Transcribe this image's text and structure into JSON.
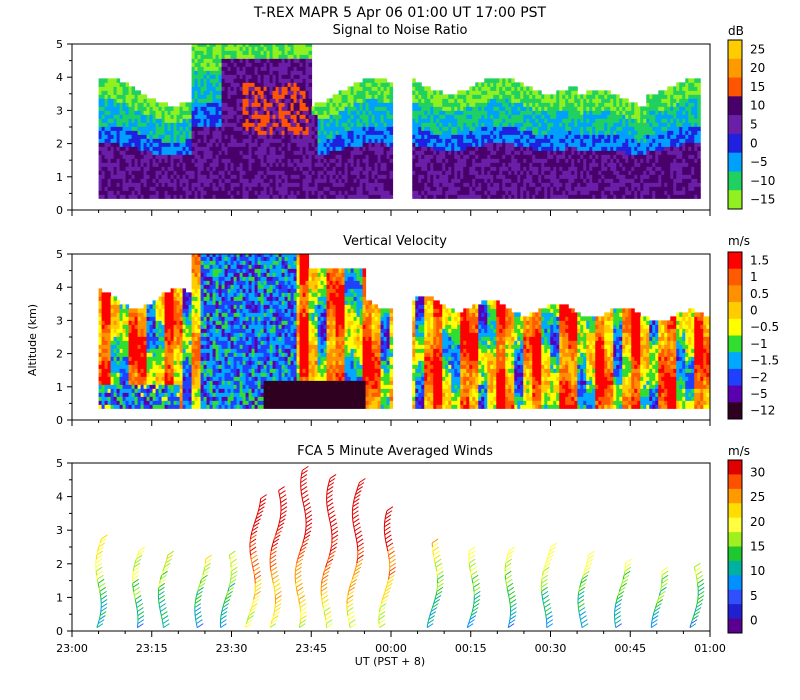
{
  "title": "T-REX   MAPR   5 Apr 06   01:00 UT   17:00   PST",
  "ylabel": "Altitude (km)",
  "xlabel": "UT  (PST + 8)",
  "x_ticks": [
    "23:00",
    "23:15",
    "23:30",
    "23:45",
    "00:00",
    "00:15",
    "00:30",
    "00:45",
    "01:00"
  ],
  "chart_data": [
    {
      "type": "heatmap",
      "title": "Signal to Noise Ratio",
      "ylabel": "Altitude (km)",
      "ylim": [
        0,
        5
      ],
      "y_ticks": [
        0,
        1,
        2,
        3,
        4,
        5
      ],
      "x_ticks": [
        "23:00",
        "23:15",
        "23:30",
        "23:45",
        "00:00",
        "00:15",
        "00:30",
        "00:45",
        "01:00"
      ],
      "colorbar": {
        "unit": "dB",
        "labels": [
          "25",
          "20",
          "15",
          "10",
          "5",
          "0",
          "−5",
          "−10",
          "−15"
        ],
        "colors": [
          "#ffcc00",
          "#ff9900",
          "#ff5500",
          "#4a006a",
          "#6a1fa8",
          "#2020e0",
          "#00a0ff",
          "#20d060",
          "#90f020"
        ]
      },
      "gap_between": [
        "00:00",
        "00:05"
      ],
      "data_top_km": [
        3.5,
        4.7,
        5.0,
        4.3,
        3.9,
        4.7
      ]
    },
    {
      "type": "heatmap",
      "title": "Vertical Velocity",
      "ylabel": "Altitude (km)",
      "ylim": [
        0,
        5
      ],
      "y_ticks": [
        0,
        1,
        2,
        3,
        4,
        5
      ],
      "colorbar": {
        "unit": "m/s",
        "labels": [
          "1.5",
          "1",
          "0.5",
          "0",
          "−0.5",
          "−1",
          "−1.5",
          "−2",
          "−5",
          "−12"
        ],
        "colors": [
          "#ff0000",
          "#ff5a00",
          "#ff9000",
          "#ffcc00",
          "#ffff00",
          "#30dd30",
          "#00a8ff",
          "#2040ff",
          "#5a00b0",
          "#300020"
        ]
      },
      "gap_between": [
        "00:00",
        "00:05"
      ],
      "data_top_km": [
        3.7,
        4.1,
        5.0,
        4.6,
        3.9,
        3.5,
        3.2
      ]
    },
    {
      "type": "scatter",
      "title": "FCA 5 Minute Averaged Winds",
      "ylabel": "Altitude (km)",
      "ylim": [
        0,
        5
      ],
      "y_ticks": [
        0,
        1,
        2,
        3,
        4,
        5
      ],
      "xlabel": "UT  (PST + 8)",
      "colorbar": {
        "unit": "m/s",
        "labels": [
          "30",
          "25",
          "20",
          "15",
          "10",
          "5",
          "0"
        ],
        "colors": [
          "#e00000",
          "#ff5000",
          "#ff9900",
          "#ffdd00",
          "#ffff40",
          "#a0f020",
          "#20c830",
          "#00b0a0",
          "#0090ff",
          "#3050ff",
          "#2020d0",
          "#5a0090"
        ]
      },
      "profile_times_min": [
        5,
        12,
        17,
        24,
        29,
        34,
        38,
        43,
        48,
        53,
        59,
        68,
        75,
        82,
        89,
        96,
        103,
        110,
        117
      ],
      "profile_top_km": [
        2.8,
        2.4,
        2.3,
        2.2,
        2.3,
        4.0,
        4.2,
        4.8,
        4.6,
        4.5,
        3.6,
        2.7,
        2.4,
        2.5,
        2.6,
        2.3,
        2.1,
        1.8,
        2.0
      ]
    }
  ]
}
